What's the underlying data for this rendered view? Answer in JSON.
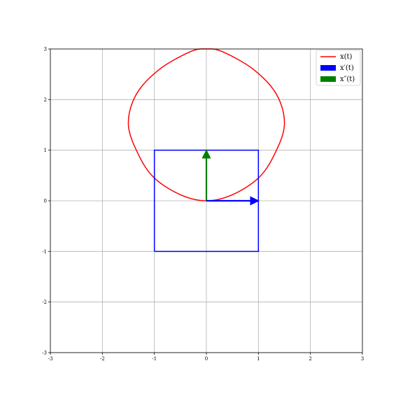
{
  "chart_data": {
    "type": "line",
    "title": "",
    "xlabel": "",
    "ylabel": "",
    "xlim": [
      -3,
      3
    ],
    "ylim": [
      -3,
      3
    ],
    "grid": true,
    "x_ticks": [
      -3,
      -2,
      -1,
      0,
      1,
      2,
      3
    ],
    "y_ticks": [
      -3,
      -2,
      -1,
      0,
      1,
      2,
      3
    ],
    "x_tick_labels": [
      "-3",
      "-2",
      "-1",
      "0",
      "1",
      "2",
      "3"
    ],
    "y_tick_labels": [
      "-3",
      "-2",
      "-1",
      "0",
      "1",
      "2",
      "3"
    ],
    "legend_position": "top-right",
    "colors": {
      "curve": "#ff0000",
      "velocity": "#0000ff",
      "acceleration": "#008000",
      "grid": "#b0b0b0",
      "axes": "#000000"
    },
    "series": [
      {
        "name": "x(t)",
        "legend_label": "x(t)",
        "kind": "closed-curve",
        "color": "#ff0000",
        "description_points": {
          "x": [
            0,
            0.5,
            1.0,
            1.3,
            1.5,
            1.35,
            0.9,
            0.3,
            0,
            -0.3,
            -0.9,
            -1.35,
            -1.5,
            -1.3,
            -1.0,
            -0.5,
            0
          ],
          "y": [
            0,
            0.12,
            0.45,
            0.9,
            1.5,
            2.1,
            2.6,
            2.95,
            3.0,
            2.95,
            2.6,
            2.1,
            1.5,
            0.9,
            0.45,
            0.12,
            0
          ]
        }
      },
      {
        "name": "x'(t)",
        "legend_label": "x′(t)",
        "kind": "square",
        "color": "#0000ff",
        "corners": {
          "x": [
            -1,
            1,
            1,
            -1,
            -1
          ],
          "y": [
            -1,
            -1,
            1,
            1,
            -1
          ]
        },
        "arrow": {
          "x0": 0,
          "y0": 0,
          "dx": 1,
          "dy": 0
        }
      },
      {
        "name": "x''(t)",
        "legend_label": "x″(t)",
        "kind": "arrow",
        "color": "#008000",
        "arrow": {
          "x0": 0,
          "y0": 0,
          "dx": 0,
          "dy": 1
        }
      }
    ]
  }
}
